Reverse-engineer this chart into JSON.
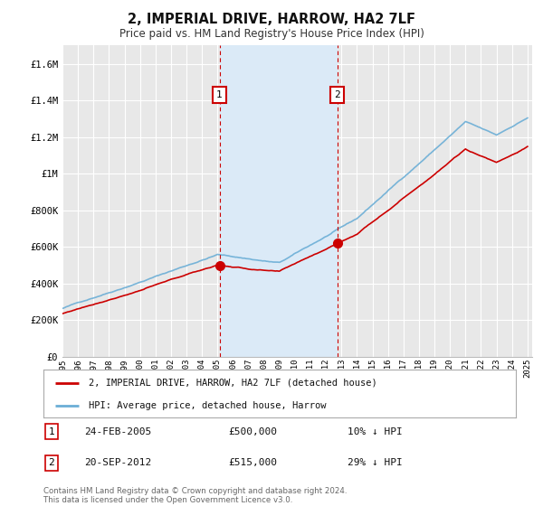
{
  "title": "2, IMPERIAL DRIVE, HARROW, HA2 7LF",
  "subtitle": "Price paid vs. HM Land Registry's House Price Index (HPI)",
  "ylim": [
    0,
    1700000
  ],
  "yticks": [
    0,
    200000,
    400000,
    600000,
    800000,
    1000000,
    1200000,
    1400000,
    1600000
  ],
  "ytick_labels": [
    "£0",
    "£200K",
    "£400K",
    "£600K",
    "£800K",
    "£1M",
    "£1.2M",
    "£1.4M",
    "£1.6M"
  ],
  "sale1_date": 2005.13,
  "sale1_price": 500000,
  "sale1_text": "24-FEB-2005",
  "sale1_price_text": "£500,000",
  "sale1_hpi_text": "10% ↓ HPI",
  "sale2_date": 2012.72,
  "sale2_price": 515000,
  "sale2_text": "20-SEP-2012",
  "sale2_price_text": "£515,000",
  "sale2_hpi_text": "29% ↓ HPI",
  "property_color": "#cc0000",
  "hpi_color": "#6baed6",
  "hpi_fill_color": "#dbeaf7",
  "vline_color": "#cc0000",
  "background_color": "#ffffff",
  "plot_bg_color": "#e8e8e8",
  "grid_color": "#ffffff",
  "footnote": "Contains HM Land Registry data © Crown copyright and database right 2024.\nThis data is licensed under the Open Government Licence v3.0.",
  "legend_property": "2, IMPERIAL DRIVE, HARROW, HA2 7LF (detached house)",
  "legend_hpi": "HPI: Average price, detached house, Harrow"
}
